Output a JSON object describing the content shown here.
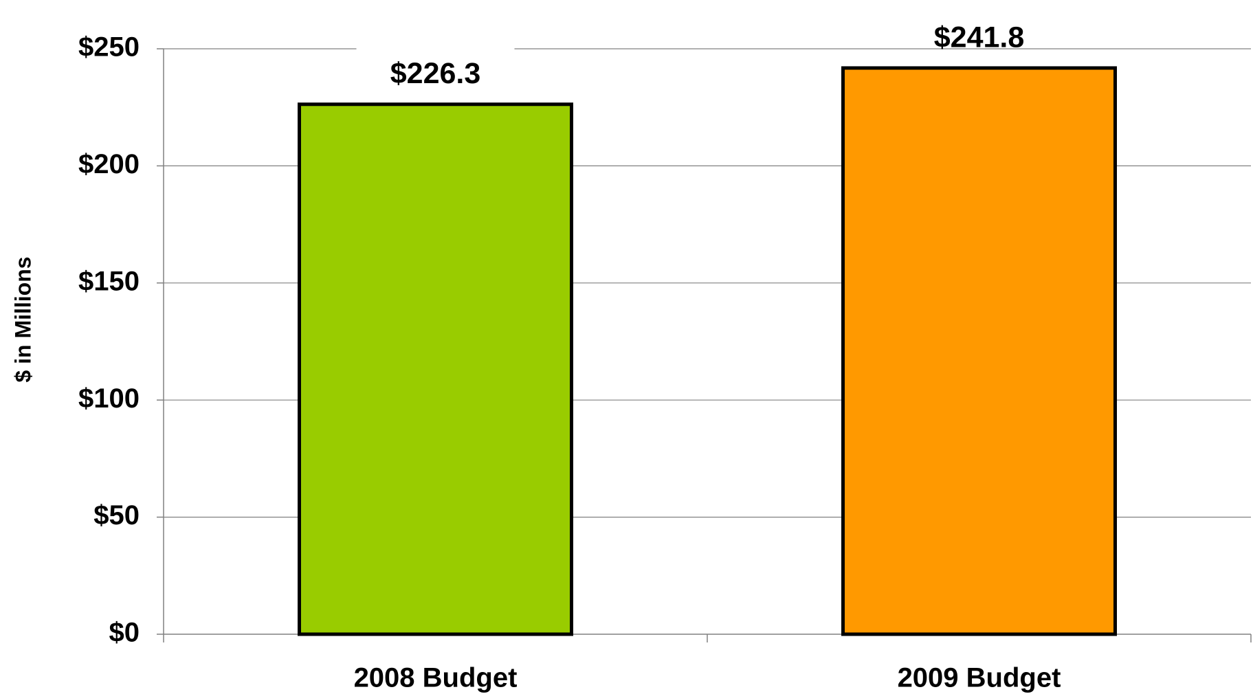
{
  "chart_data": {
    "type": "bar",
    "categories": [
      "2008 Budget",
      "2009 Budget"
    ],
    "values": [
      226.3,
      241.8
    ],
    "value_labels": [
      "$226.3",
      "$241.8"
    ],
    "bar_colors": [
      "#99CC00",
      "#FF9900"
    ],
    "ylabel": "$ in Millions",
    "ylim": [
      0,
      250
    ],
    "yticks": [
      0,
      50,
      100,
      150,
      200,
      250
    ],
    "ytick_labels": [
      "$0",
      "$50",
      "$100",
      "$150",
      "$200",
      "$250"
    ],
    "grid": true,
    "legend": "none"
  }
}
